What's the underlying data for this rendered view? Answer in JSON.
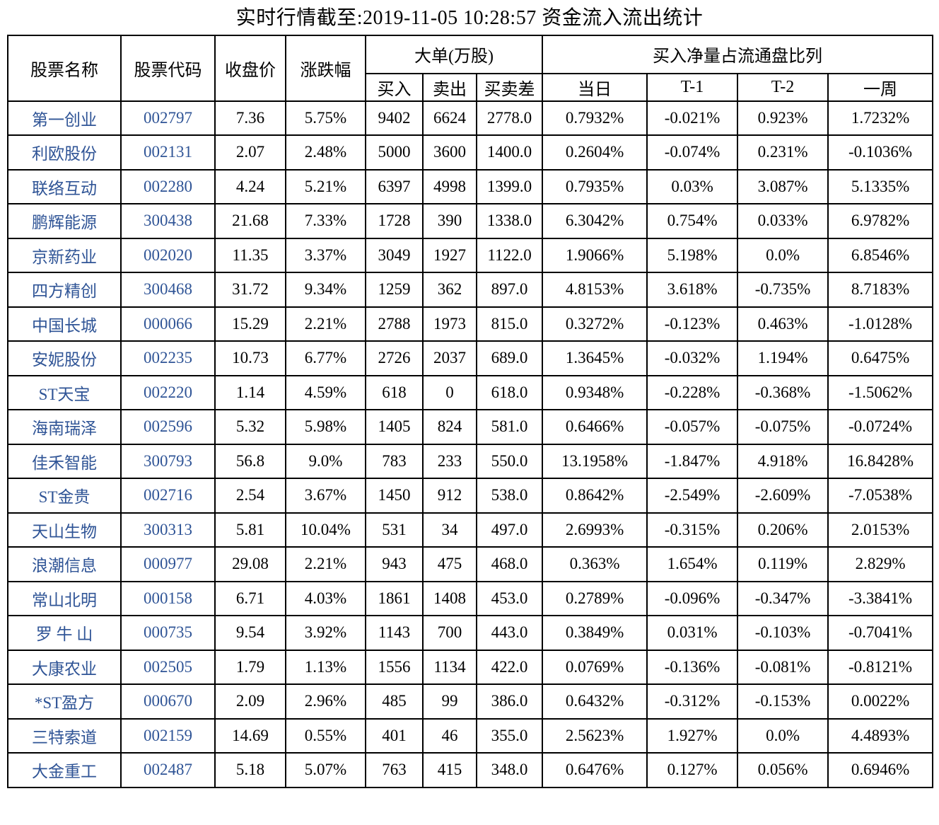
{
  "title": "实时行情截至:2019-11-05 10:28:57 资金流入流出统计",
  "colors": {
    "text": "#000000",
    "stock_link_blue": "#2F5496",
    "border": "#000000",
    "background": "#FFFFFF"
  },
  "table": {
    "headers": {
      "stock_name": "股票名称",
      "stock_code": "股票代码",
      "close_price": "收盘价",
      "change_pct": "涨跌幅",
      "large_order_group": "大单(万股)",
      "buy": "买入",
      "sell": "卖出",
      "buy_sell_diff": "买卖差",
      "net_buy_ratio_group": "买入净量占流通盘比列",
      "today": "当日",
      "t_minus_1": "T-1",
      "t_minus_2": "T-2",
      "week": "一周"
    },
    "cell_names": [
      "cell-stock-name",
      "cell-stock-code",
      "cell-close-price",
      "cell-change-pct",
      "cell-buy",
      "cell-sell",
      "cell-buy-sell-diff",
      "cell-today",
      "cell-t-1",
      "cell-t-2",
      "cell-week"
    ],
    "rows": [
      [
        "第一创业",
        "002797",
        "7.36",
        "5.75%",
        "9402",
        "6624",
        "2778.0",
        "0.7932%",
        "-0.021%",
        "0.923%",
        "1.7232%"
      ],
      [
        "利欧股份",
        "002131",
        "2.07",
        "2.48%",
        "5000",
        "3600",
        "1400.0",
        "0.2604%",
        "-0.074%",
        "0.231%",
        "-0.1036%"
      ],
      [
        "联络互动",
        "002280",
        "4.24",
        "5.21%",
        "6397",
        "4998",
        "1399.0",
        "0.7935%",
        "0.03%",
        "3.087%",
        "5.1335%"
      ],
      [
        "鹏辉能源",
        "300438",
        "21.68",
        "7.33%",
        "1728",
        "390",
        "1338.0",
        "6.3042%",
        "0.754%",
        "0.033%",
        "6.9782%"
      ],
      [
        "京新药业",
        "002020",
        "11.35",
        "3.37%",
        "3049",
        "1927",
        "1122.0",
        "1.9066%",
        "5.198%",
        "0.0%",
        "6.8546%"
      ],
      [
        "四方精创",
        "300468",
        "31.72",
        "9.34%",
        "1259",
        "362",
        "897.0",
        "4.8153%",
        "3.618%",
        "-0.735%",
        "8.7183%"
      ],
      [
        "中国长城",
        "000066",
        "15.29",
        "2.21%",
        "2788",
        "1973",
        "815.0",
        "0.3272%",
        "-0.123%",
        "0.463%",
        "-1.0128%"
      ],
      [
        "安妮股份",
        "002235",
        "10.73",
        "6.77%",
        "2726",
        "2037",
        "689.0",
        "1.3645%",
        "-0.032%",
        "1.194%",
        "0.6475%"
      ],
      [
        "ST天宝",
        "002220",
        "1.14",
        "4.59%",
        "618",
        "0",
        "618.0",
        "0.9348%",
        "-0.228%",
        "-0.368%",
        "-1.5062%"
      ],
      [
        "海南瑞泽",
        "002596",
        "5.32",
        "5.98%",
        "1405",
        "824",
        "581.0",
        "0.6466%",
        "-0.057%",
        "-0.075%",
        "-0.0724%"
      ],
      [
        "佳禾智能",
        "300793",
        "56.8",
        "9.0%",
        "783",
        "233",
        "550.0",
        "13.1958%",
        "-1.847%",
        "4.918%",
        "16.8428%"
      ],
      [
        "ST金贵",
        "002716",
        "2.54",
        "3.67%",
        "1450",
        "912",
        "538.0",
        "0.8642%",
        "-2.549%",
        "-2.609%",
        "-7.0538%"
      ],
      [
        "天山生物",
        "300313",
        "5.81",
        "10.04%",
        "531",
        "34",
        "497.0",
        "2.6993%",
        "-0.315%",
        "0.206%",
        "2.0153%"
      ],
      [
        "浪潮信息",
        "000977",
        "29.08",
        "2.21%",
        "943",
        "475",
        "468.0",
        "0.363%",
        "1.654%",
        "0.119%",
        "2.829%"
      ],
      [
        "常山北明",
        "000158",
        "6.71",
        "4.03%",
        "1861",
        "1408",
        "453.0",
        "0.2789%",
        "-0.096%",
        "-0.347%",
        "-3.3841%"
      ],
      [
        "罗 牛 山",
        "000735",
        "9.54",
        "3.92%",
        "1143",
        "700",
        "443.0",
        "0.3849%",
        "0.031%",
        "-0.103%",
        "-0.7041%"
      ],
      [
        "大康农业",
        "002505",
        "1.79",
        "1.13%",
        "1556",
        "1134",
        "422.0",
        "0.0769%",
        "-0.136%",
        "-0.081%",
        "-0.8121%"
      ],
      [
        "*ST盈方",
        "000670",
        "2.09",
        "2.96%",
        "485",
        "99",
        "386.0",
        "0.6432%",
        "-0.312%",
        "-0.153%",
        "0.0022%"
      ],
      [
        "三特索道",
        "002159",
        "14.69",
        "0.55%",
        "401",
        "46",
        "355.0",
        "2.5623%",
        "1.927%",
        "0.0%",
        "4.4893%"
      ],
      [
        "大金重工",
        "002487",
        "5.18",
        "5.07%",
        "763",
        "415",
        "348.0",
        "0.6476%",
        "0.127%",
        "0.056%",
        "0.6946%"
      ]
    ]
  }
}
